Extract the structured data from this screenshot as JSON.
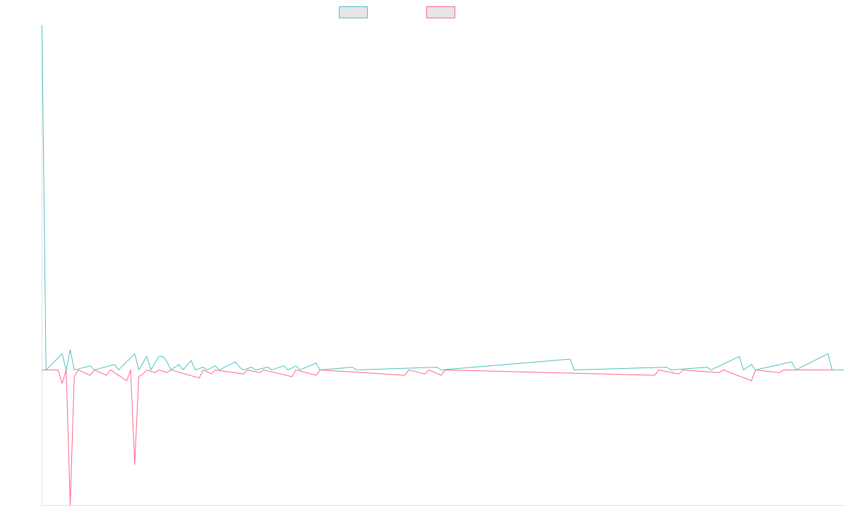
{
  "colors": {
    "series_a": "#4bc0c0",
    "series_b": "#ff6384",
    "swatch_fill": "#e6e6e6",
    "axis": "#e0e0e0"
  },
  "chart_data": {
    "type": "line",
    "title": "",
    "xlabel": "",
    "ylabel": "",
    "grid": false,
    "legend": "top-center",
    "x_count": 200,
    "ylim": [
      -1.0,
      2.55
    ],
    "series": [
      {
        "color": "#4bc0c0",
        "points": [
          [
            0,
            2.55
          ],
          [
            1,
            0.0
          ],
          [
            5,
            0.12
          ],
          [
            6,
            0.0
          ],
          [
            7,
            0.15
          ],
          [
            8,
            0.0
          ],
          [
            12,
            0.03
          ],
          [
            13,
            0.0
          ],
          [
            18,
            0.04
          ],
          [
            19,
            0.0
          ],
          [
            23,
            0.12
          ],
          [
            24,
            0.0
          ],
          [
            26,
            0.1
          ],
          [
            27,
            0.0
          ],
          [
            29,
            0.1
          ],
          [
            30,
            0.1
          ],
          [
            31,
            0.06
          ],
          [
            32,
            0.0
          ],
          [
            34,
            0.04
          ],
          [
            35,
            0.0
          ],
          [
            37,
            0.07
          ],
          [
            38,
            0.0
          ],
          [
            40,
            0.02
          ],
          [
            41,
            0.0
          ],
          [
            43,
            0.03
          ],
          [
            44,
            0.0
          ],
          [
            48,
            0.06
          ],
          [
            49,
            0.02
          ],
          [
            50,
            0.0
          ],
          [
            52,
            0.02
          ],
          [
            53,
            0.0
          ],
          [
            56,
            0.02
          ],
          [
            57,
            0.0
          ],
          [
            60,
            0.03
          ],
          [
            61,
            0.0
          ],
          [
            63,
            0.03
          ],
          [
            64,
            0.0
          ],
          [
            68,
            0.05
          ],
          [
            69,
            0.0
          ],
          [
            77,
            0.02
          ],
          [
            78,
            0.0
          ],
          [
            98,
            0.02
          ],
          [
            99,
            0.0
          ],
          [
            131,
            0.08
          ],
          [
            132,
            0.0
          ],
          [
            155,
            0.02
          ],
          [
            156,
            0.0
          ],
          [
            165,
            0.02
          ],
          [
            166,
            0.0
          ],
          [
            173,
            0.1
          ],
          [
            174,
            0.0
          ],
          [
            176,
            0.04
          ],
          [
            177,
            0.0
          ],
          [
            186,
            0.06
          ],
          [
            187,
            0.0
          ],
          [
            195,
            0.12
          ],
          [
            196,
            0.0
          ],
          [
            199,
            0.0
          ]
        ]
      },
      {
        "color": "#ff6384",
        "points": [
          [
            0,
            0.0
          ],
          [
            4,
            0.0
          ],
          [
            5,
            -0.1
          ],
          [
            6,
            -0.0
          ],
          [
            7,
            -1.0
          ],
          [
            8,
            -0.05
          ],
          [
            9,
            0.0
          ],
          [
            12,
            -0.04
          ],
          [
            13,
            0.0
          ],
          [
            16,
            -0.04
          ],
          [
            17,
            0.0
          ],
          [
            21,
            -0.08
          ],
          [
            22,
            0.0
          ],
          [
            23,
            -0.7
          ],
          [
            24,
            -0.05
          ],
          [
            25,
            -0.03
          ],
          [
            26,
            0.0
          ],
          [
            28,
            -0.02
          ],
          [
            29,
            0.0
          ],
          [
            31,
            -0.02
          ],
          [
            32,
            0.0
          ],
          [
            39,
            -0.06
          ],
          [
            40,
            0.0
          ],
          [
            42,
            -0.03
          ],
          [
            43,
            0.0
          ],
          [
            50,
            -0.03
          ],
          [
            51,
            0.0
          ],
          [
            54,
            -0.02
          ],
          [
            55,
            0.0
          ],
          [
            62,
            -0.05
          ],
          [
            63,
            0.0
          ],
          [
            68,
            -0.04
          ],
          [
            69,
            0.0
          ],
          [
            90,
            -0.04
          ],
          [
            91,
            0.0
          ],
          [
            95,
            -0.03
          ],
          [
            96,
            0.0
          ],
          [
            99,
            -0.04
          ],
          [
            100,
            0.0
          ],
          [
            152,
            -0.04
          ],
          [
            153,
            0.0
          ],
          [
            158,
            -0.03
          ],
          [
            159,
            0.0
          ],
          [
            168,
            -0.02
          ],
          [
            169,
            0.0
          ],
          [
            176,
            -0.08
          ],
          [
            177,
            0.0
          ],
          [
            183,
            -0.02
          ],
          [
            184,
            0.0
          ],
          [
            199,
            0.0
          ]
        ]
      }
    ]
  }
}
